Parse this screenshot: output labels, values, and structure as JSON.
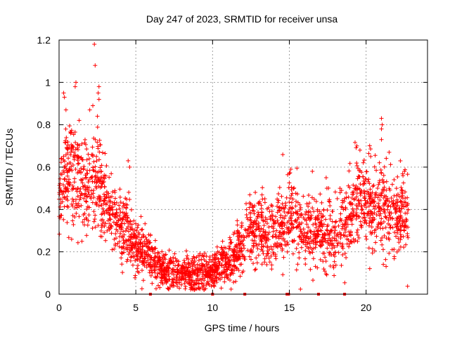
{
  "chart_data": {
    "type": "scatter",
    "title": "Day 247 of 2023, SRMTID for receiver unsa",
    "xlabel": "GPS time / hours",
    "ylabel": "SRMTID / TECUs",
    "xlim": [
      0,
      24
    ],
    "ylim": [
      0,
      1.2
    ],
    "grid": true,
    "marker": "+",
    "color": "#ff0000",
    "x_ticks": [
      {
        "value": 0,
        "label": "0"
      },
      {
        "value": 5,
        "label": "5"
      },
      {
        "value": 10,
        "label": "10"
      },
      {
        "value": 15,
        "label": "15"
      },
      {
        "value": 20,
        "label": "20"
      }
    ],
    "y_ticks": [
      {
        "value": 0,
        "label": "0"
      },
      {
        "value": 0.2,
        "label": "0.2"
      },
      {
        "value": 0.4,
        "label": "0.4"
      },
      {
        "value": 0.6,
        "label": "0.6"
      },
      {
        "value": 0.8,
        "label": "0.8"
      },
      {
        "value": 1.0,
        "label": "1"
      },
      {
        "value": 1.2,
        "label": "1.2"
      }
    ],
    "trend_profile": {
      "hours": [
        0,
        0.5,
        1,
        1.5,
        2,
        2.5,
        3,
        3.5,
        4,
        4.5,
        5,
        5.5,
        6,
        6.5,
        7,
        7.5,
        8,
        8.5,
        9,
        9.5,
        10,
        10.5,
        11,
        11.5,
        12,
        12.5,
        13,
        13.5,
        14,
        14.5,
        15,
        15.5,
        16,
        16.5,
        17,
        17.5,
        18,
        18.5,
        19,
        19.5,
        20,
        20.5,
        21,
        21.5,
        22,
        22.5
      ],
      "median_tecu": [
        0.5,
        0.55,
        0.6,
        0.5,
        0.5,
        0.55,
        0.45,
        0.38,
        0.32,
        0.28,
        0.22,
        0.2,
        0.17,
        0.12,
        0.11,
        0.1,
        0.09,
        0.1,
        0.09,
        0.1,
        0.1,
        0.15,
        0.15,
        0.18,
        0.25,
        0.33,
        0.3,
        0.28,
        0.3,
        0.33,
        0.35,
        0.33,
        0.3,
        0.32,
        0.3,
        0.28,
        0.27,
        0.3,
        0.38,
        0.45,
        0.45,
        0.42,
        0.4,
        0.38,
        0.37,
        0.38
      ],
      "spread_tecu": [
        0.13,
        0.15,
        0.16,
        0.14,
        0.14,
        0.15,
        0.12,
        0.11,
        0.1,
        0.09,
        0.07,
        0.06,
        0.06,
        0.05,
        0.05,
        0.05,
        0.04,
        0.05,
        0.05,
        0.05,
        0.05,
        0.06,
        0.06,
        0.07,
        0.08,
        0.1,
        0.1,
        0.09,
        0.1,
        0.1,
        0.11,
        0.11,
        0.1,
        0.1,
        0.1,
        0.1,
        0.1,
        0.1,
        0.11,
        0.12,
        0.12,
        0.12,
        0.12,
        0.11,
        0.11,
        0.11
      ]
    },
    "outliers": [
      {
        "x": 2.3,
        "y": 1.18
      },
      {
        "x": 2.35,
        "y": 1.08
      },
      {
        "x": 1.1,
        "y": 1.0
      },
      {
        "x": 1.05,
        "y": 0.98
      },
      {
        "x": 0.3,
        "y": 0.95
      },
      {
        "x": 0.35,
        "y": 0.93
      },
      {
        "x": 2.6,
        "y": 0.98
      },
      {
        "x": 2.55,
        "y": 0.95
      },
      {
        "x": 2.6,
        "y": 0.92
      },
      {
        "x": 2.2,
        "y": 0.89
      },
      {
        "x": 2.0,
        "y": 0.87
      },
      {
        "x": 0.45,
        "y": 0.87
      },
      {
        "x": 2.5,
        "y": 0.84
      },
      {
        "x": 21.0,
        "y": 0.83
      },
      {
        "x": 21.05,
        "y": 0.8
      },
      {
        "x": 21.0,
        "y": 0.78
      },
      {
        "x": 4.5,
        "y": 0.63
      },
      {
        "x": 4.6,
        "y": 0.6
      },
      {
        "x": 15.1,
        "y": 0.59
      },
      {
        "x": 15.0,
        "y": 0.57
      },
      {
        "x": 16.5,
        "y": 0.58
      },
      {
        "x": 21.0,
        "y": 0.73
      },
      {
        "x": 21.5,
        "y": 0.67
      },
      {
        "x": 19.4,
        "y": 0.7
      },
      {
        "x": 19.6,
        "y": 0.68
      },
      {
        "x": 17.4,
        "y": 0.55
      },
      {
        "x": 18.3,
        "y": 0.5
      },
      {
        "x": 18.4,
        "y": 0.49
      },
      {
        "x": 20.3,
        "y": 0.65
      },
      {
        "x": 22.5,
        "y": 0.58
      }
    ],
    "baseline_markers_hours": [
      5.95,
      10.0,
      12.1,
      14.85,
      14.95,
      16.9,
      18.6
    ]
  }
}
